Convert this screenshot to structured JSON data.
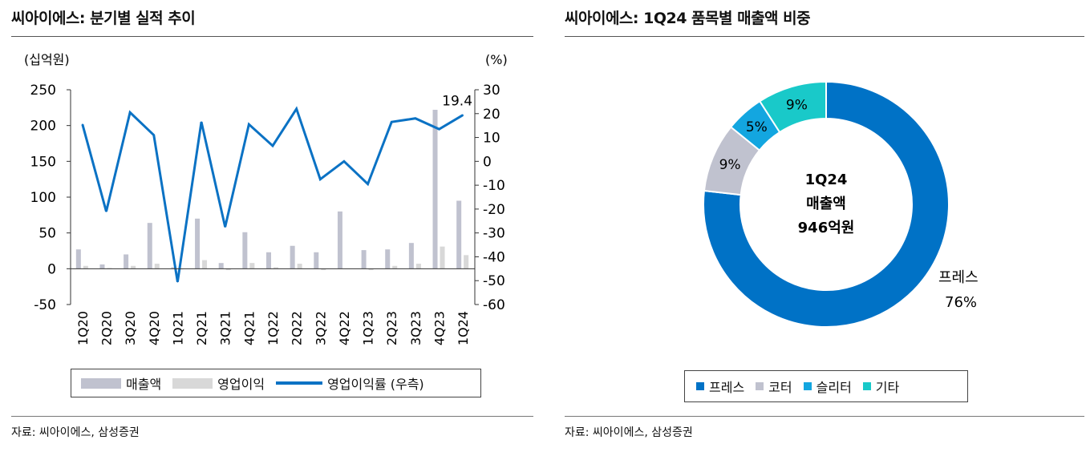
{
  "left": {
    "title": "씨아이에스: 분기별 실적 추이",
    "source": "자료: 씨아이에스, 삼성증권"
  },
  "right": {
    "title": "씨아이에스: 1Q24 품목별 매출액 비중",
    "source": "자료: 씨아이에스, 삼성증권"
  },
  "colors": {
    "revenue": "#c0c2cf",
    "op_income": "#d8d8d8",
    "margin_line": "#0b72c4",
    "press": "#0072c6",
    "coater": "#c0c2cf",
    "slitter": "#13a6e0",
    "other": "#19c9c9"
  },
  "chart_data": [
    {
      "type": "bar",
      "title": "씨아이에스: 분기별 실적 추이",
      "categories": [
        "1Q20",
        "2Q20",
        "3Q20",
        "4Q20",
        "1Q21",
        "2Q21",
        "3Q21",
        "4Q21",
        "1Q22",
        "2Q22",
        "3Q22",
        "4Q22",
        "1Q23",
        "2Q23",
        "3Q23",
        "4Q23",
        "1Q24"
      ],
      "ylabel": "(십억원)",
      "y2label": "(%)",
      "ylim": [
        -50,
        250
      ],
      "yticks": [
        -50,
        0,
        50,
        100,
        150,
        200,
        250
      ],
      "y2lim": [
        -60,
        30
      ],
      "y2ticks": [
        -60,
        -50,
        -40,
        -30,
        -20,
        -10,
        0,
        10,
        20,
        30
      ],
      "series": [
        {
          "name": "매출액",
          "type": "bar",
          "axis": "left",
          "values": [
            27,
            6,
            20,
            64,
            2,
            70,
            8,
            51,
            23,
            32,
            23,
            80,
            26,
            27,
            36,
            222,
            95
          ]
        },
        {
          "name": "영업이익",
          "type": "bar",
          "axis": "left",
          "values": [
            4,
            1,
            4,
            7,
            -1,
            12,
            -2,
            8,
            2,
            7,
            -2,
            0,
            -2,
            4,
            7,
            31,
            19
          ]
        },
        {
          "name": "영업이익률 (우측)",
          "type": "line",
          "axis": "right",
          "values": [
            15.5,
            -21,
            20.5,
            11,
            -50.5,
            16.5,
            -27.5,
            15.5,
            6.5,
            22,
            -7.5,
            0,
            -9.5,
            16.5,
            18,
            13.5,
            19.4
          ]
        }
      ],
      "annotation": "19.4",
      "legend": "bottom"
    },
    {
      "type": "pie",
      "title": "씨아이에스: 1Q24 품목별 매출액 비중",
      "center_text": [
        "1Q24",
        "매출액",
        "946억원"
      ],
      "labels": [
        "프레스",
        "코터",
        "슬리터",
        "기타"
      ],
      "values": [
        76,
        9,
        5,
        9
      ],
      "value_labels": [
        "76%",
        "9%",
        "5%",
        "9%"
      ],
      "legend": "bottom"
    }
  ]
}
